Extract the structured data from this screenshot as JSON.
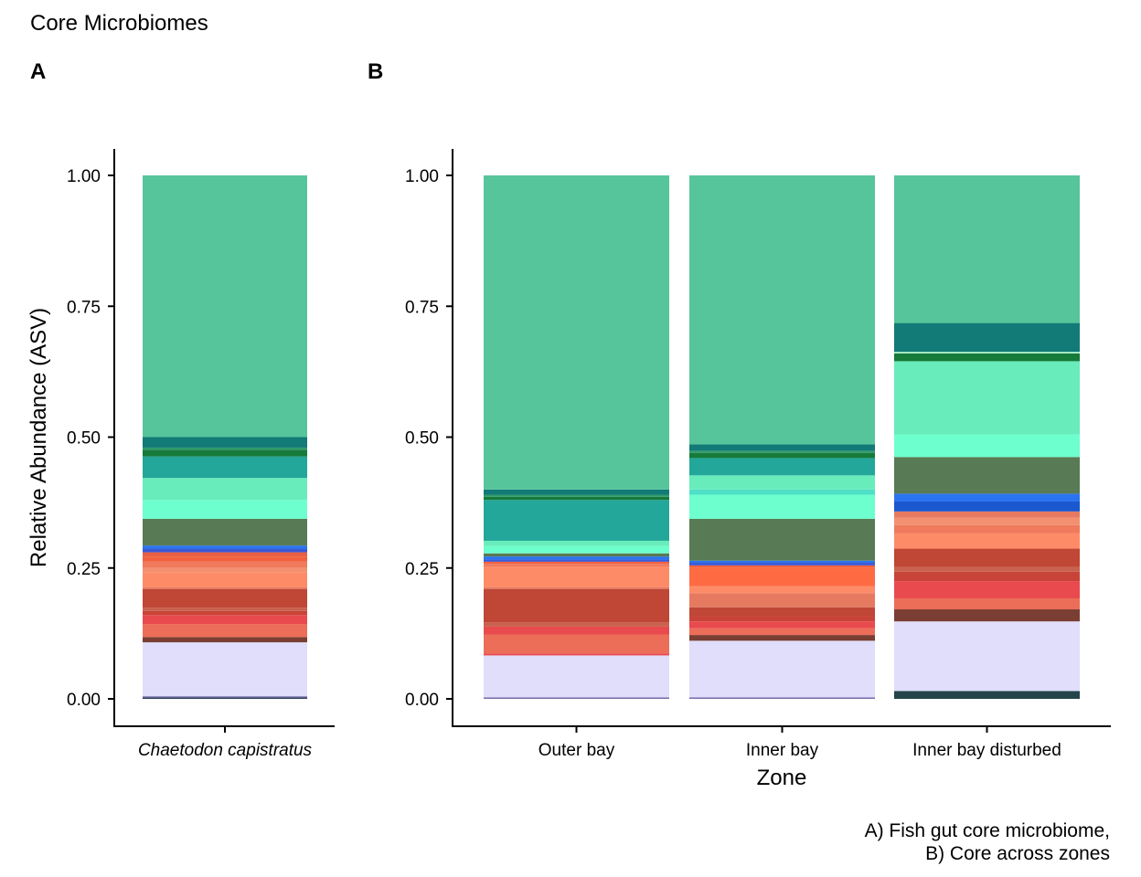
{
  "title": "Core Microbiomes",
  "caption_lines": [
    "A) Fish gut core microbiome,",
    "B) Core across zones"
  ],
  "chart_data": [
    {
      "type": "bar",
      "stacked": true,
      "panel_tag": "A",
      "ylabel": "Relative Abundance (ASV)",
      "xlabel": "",
      "ylim": [
        0,
        1
      ],
      "yticks": [
        "0.00",
        "0.25",
        "0.50",
        "0.75",
        "1.00"
      ],
      "categories": [
        "Chaetodon capistratus"
      ],
      "category_italic": true,
      "bars": [
        {
          "category": "Chaetodon capistratus",
          "segments": [
            {
              "from": 0.0,
              "to": 0.003,
              "color": "#2f3f5c"
            },
            {
              "from": 0.003,
              "to": 0.005,
              "color": "#7e6fb0"
            },
            {
              "from": 0.005,
              "to": 0.108,
              "color": "#e0defa"
            },
            {
              "from": 0.108,
              "to": 0.118,
              "color": "#7a3e32"
            },
            {
              "from": 0.118,
              "to": 0.143,
              "color": "#ec6e58"
            },
            {
              "from": 0.143,
              "to": 0.16,
              "color": "#e94a4e"
            },
            {
              "from": 0.16,
              "to": 0.168,
              "color": "#c94438"
            },
            {
              "from": 0.168,
              "to": 0.174,
              "color": "#c8614d"
            },
            {
              "from": 0.174,
              "to": 0.21,
              "color": "#c04636"
            },
            {
              "from": 0.21,
              "to": 0.213,
              "color": "#e57a60"
            },
            {
              "from": 0.213,
              "to": 0.242,
              "color": "#fe8b68"
            },
            {
              "from": 0.242,
              "to": 0.25,
              "color": "#f39070"
            },
            {
              "from": 0.25,
              "to": 0.262,
              "color": "#ef7a5c"
            },
            {
              "from": 0.262,
              "to": 0.272,
              "color": "#f2603f"
            },
            {
              "from": 0.272,
              "to": 0.28,
              "color": "#e85f43"
            },
            {
              "from": 0.28,
              "to": 0.287,
              "color": "#3a59d6"
            },
            {
              "from": 0.287,
              "to": 0.293,
              "color": "#2b74ef"
            },
            {
              "from": 0.293,
              "to": 0.344,
              "color": "#587a55"
            },
            {
              "from": 0.344,
              "to": 0.38,
              "color": "#6dffcd"
            },
            {
              "from": 0.38,
              "to": 0.422,
              "color": "#68ecbb"
            },
            {
              "from": 0.422,
              "to": 0.463,
              "color": "#22a79a"
            },
            {
              "from": 0.463,
              "to": 0.476,
              "color": "#167a3a"
            },
            {
              "from": 0.476,
              "to": 0.48,
              "color": "#2f9a6b"
            },
            {
              "from": 0.48,
              "to": 0.5,
              "color": "#127a77"
            },
            {
              "from": 0.5,
              "to": 1.0,
              "color": "#57c59b"
            }
          ]
        }
      ]
    },
    {
      "type": "bar",
      "stacked": true,
      "panel_tag": "B",
      "xlabel": "Zone",
      "ylabel": "",
      "ylim": [
        0,
        1
      ],
      "yticks": [
        "0.00",
        "0.25",
        "0.50",
        "0.75",
        "1.00"
      ],
      "categories": [
        "Outer bay",
        "Inner bay",
        "Inner bay disturbed"
      ],
      "bars": [
        {
          "category": "Outer bay",
          "segments": [
            {
              "from": 0.0,
              "to": 0.003,
              "color": "#7e6fb0"
            },
            {
              "from": 0.003,
              "to": 0.083,
              "color": "#e0defa"
            },
            {
              "from": 0.083,
              "to": 0.087,
              "color": "#e94a4e"
            },
            {
              "from": 0.087,
              "to": 0.123,
              "color": "#ec6e58"
            },
            {
              "from": 0.123,
              "to": 0.138,
              "color": "#e94a4e"
            },
            {
              "from": 0.138,
              "to": 0.146,
              "color": "#c8614d"
            },
            {
              "from": 0.146,
              "to": 0.21,
              "color": "#c04636"
            },
            {
              "from": 0.21,
              "to": 0.213,
              "color": "#e57a60"
            },
            {
              "from": 0.213,
              "to": 0.253,
              "color": "#fe8b68"
            },
            {
              "from": 0.253,
              "to": 0.258,
              "color": "#ef7a5c"
            },
            {
              "from": 0.258,
              "to": 0.262,
              "color": "#f2603f"
            },
            {
              "from": 0.262,
              "to": 0.266,
              "color": "#3a59d6"
            },
            {
              "from": 0.266,
              "to": 0.272,
              "color": "#2b74ef"
            },
            {
              "from": 0.272,
              "to": 0.278,
              "color": "#587a55"
            },
            {
              "from": 0.278,
              "to": 0.292,
              "color": "#6dffcd"
            },
            {
              "from": 0.292,
              "to": 0.302,
              "color": "#68ecbb"
            },
            {
              "from": 0.302,
              "to": 0.38,
              "color": "#22a79a"
            },
            {
              "from": 0.38,
              "to": 0.386,
              "color": "#167a3a"
            },
            {
              "from": 0.386,
              "to": 0.39,
              "color": "#2f9a6b"
            },
            {
              "from": 0.39,
              "to": 0.4,
              "color": "#127a77"
            },
            {
              "from": 0.4,
              "to": 1.0,
              "color": "#57c59b"
            }
          ]
        },
        {
          "category": "Inner bay",
          "segments": [
            {
              "from": 0.0,
              "to": 0.003,
              "color": "#7e6fb0"
            },
            {
              "from": 0.003,
              "to": 0.111,
              "color": "#e0defa"
            },
            {
              "from": 0.111,
              "to": 0.122,
              "color": "#7a3e32"
            },
            {
              "from": 0.122,
              "to": 0.135,
              "color": "#ec6e58"
            },
            {
              "from": 0.135,
              "to": 0.148,
              "color": "#e94a4e"
            },
            {
              "from": 0.148,
              "to": 0.158,
              "color": "#c94438"
            },
            {
              "from": 0.158,
              "to": 0.175,
              "color": "#c04636"
            },
            {
              "from": 0.175,
              "to": 0.202,
              "color": "#e57a60"
            },
            {
              "from": 0.202,
              "to": 0.215,
              "color": "#fe8b68"
            },
            {
              "from": 0.215,
              "to": 0.25,
              "color": "#fe6b42"
            },
            {
              "from": 0.25,
              "to": 0.255,
              "color": "#f2603f"
            },
            {
              "from": 0.255,
              "to": 0.26,
              "color": "#3a59d6"
            },
            {
              "from": 0.26,
              "to": 0.264,
              "color": "#2b74ef"
            },
            {
              "from": 0.264,
              "to": 0.344,
              "color": "#587a55"
            },
            {
              "from": 0.344,
              "to": 0.39,
              "color": "#6dffcd"
            },
            {
              "from": 0.39,
              "to": 0.4,
              "color": "#4fe0c8"
            },
            {
              "from": 0.4,
              "to": 0.427,
              "color": "#68ecbb"
            },
            {
              "from": 0.427,
              "to": 0.46,
              "color": "#22a79a"
            },
            {
              "from": 0.46,
              "to": 0.47,
              "color": "#167a3a"
            },
            {
              "from": 0.47,
              "to": 0.474,
              "color": "#2f9a6b"
            },
            {
              "from": 0.474,
              "to": 0.486,
              "color": "#127a77"
            },
            {
              "from": 0.486,
              "to": 1.0,
              "color": "#57c59b"
            }
          ]
        },
        {
          "category": "Inner bay disturbed",
          "segments": [
            {
              "from": 0.0,
              "to": 0.015,
              "color": "#24444a"
            },
            {
              "from": 0.015,
              "to": 0.148,
              "color": "#e0defa"
            },
            {
              "from": 0.148,
              "to": 0.171,
              "color": "#7a3e32"
            },
            {
              "from": 0.171,
              "to": 0.192,
              "color": "#ec6e58"
            },
            {
              "from": 0.192,
              "to": 0.225,
              "color": "#e94a4e"
            },
            {
              "from": 0.225,
              "to": 0.243,
              "color": "#c94438"
            },
            {
              "from": 0.243,
              "to": 0.252,
              "color": "#c8614d"
            },
            {
              "from": 0.252,
              "to": 0.287,
              "color": "#c04636"
            },
            {
              "from": 0.287,
              "to": 0.316,
              "color": "#fe8b68"
            },
            {
              "from": 0.316,
              "to": 0.332,
              "color": "#ef7a5c"
            },
            {
              "from": 0.332,
              "to": 0.346,
              "color": "#f39070"
            },
            {
              "from": 0.346,
              "to": 0.358,
              "color": "#e57a60"
            },
            {
              "from": 0.358,
              "to": 0.377,
              "color": "#1b58cf"
            },
            {
              "from": 0.377,
              "to": 0.392,
              "color": "#2b74ef"
            },
            {
              "from": 0.392,
              "to": 0.462,
              "color": "#587a55"
            },
            {
              "from": 0.462,
              "to": 0.505,
              "color": "#6dffcd"
            },
            {
              "from": 0.505,
              "to": 0.645,
              "color": "#68ecbb"
            },
            {
              "from": 0.645,
              "to": 0.66,
              "color": "#167a3a"
            },
            {
              "from": 0.66,
              "to": 0.663,
              "color": "#a8f0c8"
            },
            {
              "from": 0.663,
              "to": 0.718,
              "color": "#127a77"
            },
            {
              "from": 0.718,
              "to": 1.0,
              "color": "#57c59b"
            }
          ]
        }
      ]
    }
  ]
}
